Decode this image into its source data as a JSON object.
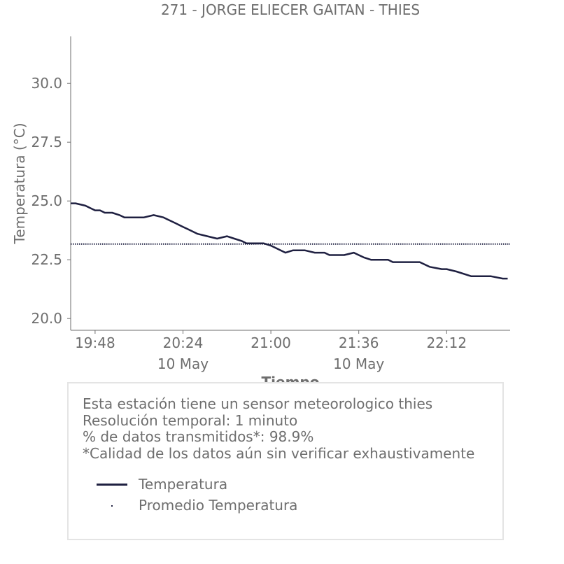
{
  "title": "271 - JORGE ELIECER GAITAN - THIES",
  "colors": {
    "series": "#1f2041",
    "text": "#6e6e6e",
    "axis": "#6e6e6e",
    "box_border": "#e4e4e4"
  },
  "chart_data": {
    "type": "line",
    "title": "271 - JORGE ELIECER GAITAN - THIES",
    "xlabel": "Tiempo",
    "ylabel": "Temperatura (°C)",
    "x_ticks": [
      "19:48",
      "20:24",
      "21:00",
      "21:36",
      "22:12"
    ],
    "x_secondary_ticks": [
      {
        "at": "20:24",
        "label": "10 May"
      },
      {
        "at": "21:36",
        "label": "10 May"
      }
    ],
    "y_ticks": [
      "20.0",
      "22.5",
      "25.0",
      "27.5",
      "30.0"
    ],
    "xlim": [
      "19:38",
      "22:38"
    ],
    "ylim": [
      19.5,
      32.0
    ],
    "grid": false,
    "series": [
      {
        "name": "Temperatura",
        "style": "solid",
        "x": [
          "19:38",
          "19:40",
          "19:44",
          "19:48",
          "19:50",
          "19:52",
          "19:55",
          "19:58",
          "20:00",
          "20:02",
          "20:05",
          "20:08",
          "20:12",
          "20:16",
          "20:18",
          "20:20",
          "20:24",
          "20:26",
          "20:30",
          "20:34",
          "20:38",
          "20:42",
          "20:45",
          "20:48",
          "20:50",
          "20:52",
          "20:55",
          "20:57",
          "21:00",
          "21:02",
          "21:04",
          "21:06",
          "21:09",
          "21:11",
          "21:14",
          "21:18",
          "21:20",
          "21:22",
          "21:24",
          "21:27",
          "21:30",
          "21:34",
          "21:36",
          "21:38",
          "21:41",
          "21:45",
          "21:48",
          "21:50",
          "21:53",
          "21:57",
          "22:01",
          "22:05",
          "22:10",
          "22:12",
          "22:16",
          "22:22",
          "22:25",
          "22:30",
          "22:35",
          "22:37"
        ],
        "y": [
          24.9,
          24.9,
          24.8,
          24.6,
          24.6,
          24.5,
          24.5,
          24.4,
          24.3,
          24.3,
          24.3,
          24.3,
          24.4,
          24.3,
          24.2,
          24.1,
          23.9,
          23.8,
          23.6,
          23.5,
          23.4,
          23.5,
          23.4,
          23.3,
          23.2,
          23.2,
          23.2,
          23.2,
          23.1,
          23.0,
          22.9,
          22.8,
          22.9,
          22.9,
          22.9,
          22.8,
          22.8,
          22.8,
          22.7,
          22.7,
          22.7,
          22.8,
          22.7,
          22.6,
          22.5,
          22.5,
          22.5,
          22.4,
          22.4,
          22.4,
          22.4,
          22.2,
          22.1,
          22.1,
          22.0,
          21.8,
          21.8,
          21.8,
          21.7,
          21.7
        ]
      },
      {
        "name": "Promedio Temperatura",
        "style": "dotted",
        "x": [
          "19:38",
          "22:38"
        ],
        "y": [
          23.17,
          23.17
        ]
      }
    ],
    "legend_placement": "bottom (below chart, inside info box)"
  },
  "info": {
    "line1": "Esta estación tiene un sensor meteorologico thies",
    "line2": "Resolución temporal: 1 minuto",
    "line3": "% de datos transmitidos*: 98.9%",
    "line4": "*Calidad de los datos aún sin verificar exhaustivamente"
  },
  "legend": {
    "temperature_label": "Temperatura",
    "average_label": "Promedio Temperatura"
  }
}
